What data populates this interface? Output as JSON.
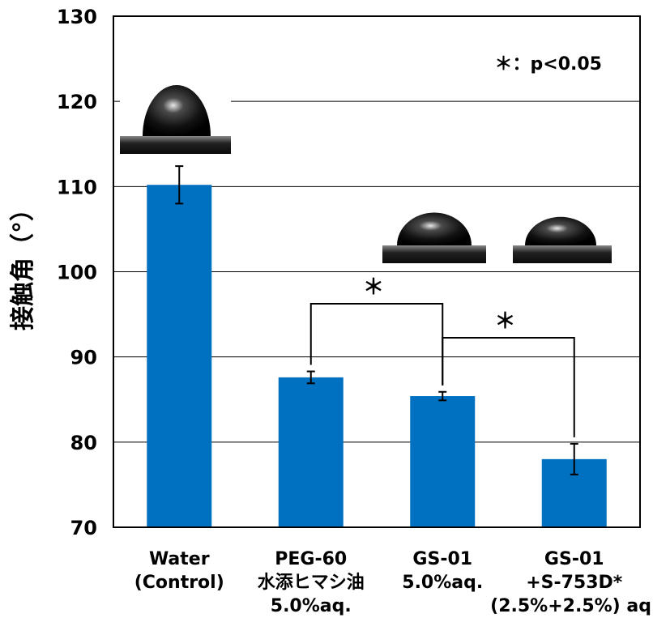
{
  "chart_data": {
    "type": "bar",
    "ylabel": "接触角（°）",
    "ylim": [
      70,
      130
    ],
    "yticks": [
      70,
      80,
      90,
      100,
      110,
      120,
      130
    ],
    "grid": "horizontal major gridlines",
    "bar_color": "#0070c0",
    "categories": [
      {
        "lines": [
          "Water",
          "(Control)"
        ]
      },
      {
        "lines": [
          "PEG-60",
          "水添ヒマシ油",
          "5.0%aq."
        ]
      },
      {
        "lines": [
          "GS-01",
          "5.0%aq."
        ]
      },
      {
        "lines": [
          "GS-01",
          "+S-753D*",
          "(2.5%+2.5%) aq."
        ]
      }
    ],
    "values": [
      110.2,
      87.6,
      85.4,
      78.0
    ],
    "error": [
      2.2,
      0.7,
      0.5,
      1.8
    ],
    "annotation": "＊：p<0.05",
    "significance": [
      {
        "from": 1,
        "to": 2,
        "label": "＊"
      },
      {
        "from": 2,
        "to": 3,
        "label": "＊"
      }
    ]
  }
}
